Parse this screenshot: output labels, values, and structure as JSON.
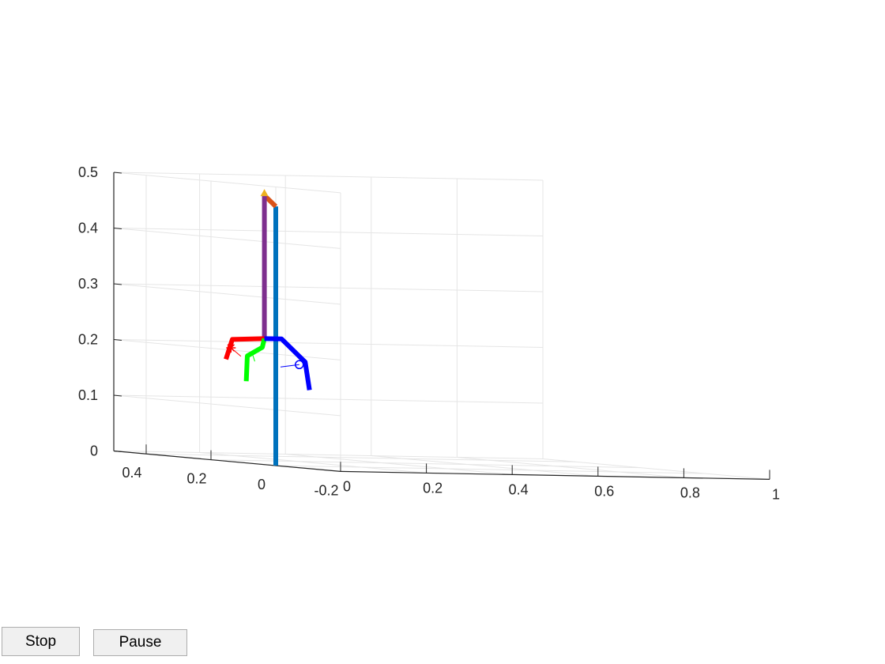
{
  "controls": {
    "stop_label": "Stop",
    "pause_label": "Pause"
  },
  "chart_data": {
    "type": "3d-line",
    "title": "",
    "xlabel": "",
    "ylabel": "",
    "zlabel": "",
    "grid": true,
    "axes": {
      "x": {
        "ticks": [
          0,
          0.2,
          0.4,
          0.6,
          0.8,
          1
        ],
        "tick_labels": [
          "0",
          "0.2",
          "0.4",
          "0.6",
          "0.8",
          "1"
        ],
        "range": [
          0,
          1
        ]
      },
      "y": {
        "ticks": [
          -0.2,
          0,
          0.2,
          0.4
        ],
        "tick_labels": [
          "-0.2",
          "0",
          "0.2",
          "0.4"
        ],
        "range": [
          -0.2,
          0.5
        ]
      },
      "z": {
        "ticks": [
          0,
          0.1,
          0.2,
          0.3,
          0.4,
          0.5
        ],
        "tick_labels": [
          "0",
          "0.1",
          "0.2",
          "0.3",
          "0.4",
          "0.5"
        ],
        "range": [
          0,
          0.5
        ]
      }
    },
    "colors": {
      "pole": "#0072bd",
      "arm": "#d95319",
      "tip": "#edb120",
      "hanger": "#7e2f8e",
      "leg1": "#ff0000",
      "leg2": "#00ff00",
      "leg3": "#0000ff",
      "grid": "#e5e5e5",
      "axis": "#262626"
    },
    "series": [
      {
        "key": "pole",
        "points": [
          [
            0,
            0,
            0
          ],
          [
            0,
            0,
            0.465
          ]
        ]
      },
      {
        "key": "arm",
        "points": [
          [
            0,
            0,
            0.465
          ],
          [
            0.2,
            0.3,
            0.472
          ]
        ]
      },
      {
        "key": "hanger",
        "points": [
          [
            0.2,
            0.3,
            0.472
          ],
          [
            0.2,
            0.3,
            0.215
          ]
        ]
      },
      {
        "key": "leg1",
        "points": [
          [
            0.2,
            0.3,
            0.215
          ],
          [
            0.08,
            0.24,
            0.215
          ],
          [
            0.05,
            0.22,
            0.18
          ]
        ]
      },
      {
        "key": "leg2",
        "points": [
          [
            0.2,
            0.3,
            0.215
          ],
          [
            0.18,
            0.28,
            0.2
          ],
          [
            0.13,
            0.26,
            0.185
          ],
          [
            0.12,
            0.25,
            0.14
          ]
        ]
      },
      {
        "key": "leg3",
        "points": [
          [
            0.2,
            0.3,
            0.215
          ],
          [
            0.24,
            0.3,
            0.215
          ],
          [
            0.28,
            0.28,
            0.175
          ],
          [
            0.29,
            0.28,
            0.125
          ]
        ]
      }
    ],
    "markers": [
      {
        "key": "leg1",
        "symbol": "asterisk",
        "point": [
          0.073,
          0.235,
          0.2
        ],
        "vector_to": [
          0.1,
          0.24,
          0.185
        ]
      },
      {
        "key": "leg2",
        "symbol": "none",
        "point": [
          0.145,
          0.265,
          0.19
        ],
        "vector_to": [
          0.155,
          0.27,
          0.175
        ]
      },
      {
        "key": "leg3",
        "symbol": "circle",
        "point": [
          0.27,
          0.285,
          0.17
        ],
        "vector_to": [
          0.23,
          0.29,
          0.165
        ]
      }
    ]
  }
}
